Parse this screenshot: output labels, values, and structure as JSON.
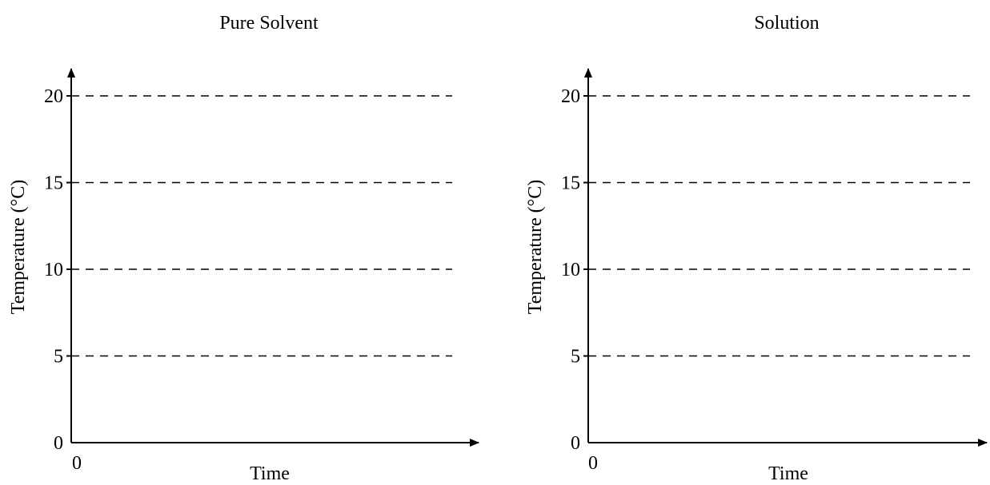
{
  "chart_data": [
    {
      "type": "line",
      "title": "Pure Solvent",
      "xlabel": "Time",
      "ylabel": "Temperature (°C)",
      "ylim": [
        0,
        21
      ],
      "yticks": [
        "0",
        "5",
        "10",
        "15",
        "20"
      ],
      "xticks": [
        "0"
      ],
      "grid": "horizontal dashed lines at 5, 10, 15, 20",
      "series": []
    },
    {
      "type": "line",
      "title": "Solution",
      "xlabel": "Time",
      "ylabel": "Temperature (°C)",
      "ylim": [
        0,
        21
      ],
      "yticks": [
        "0",
        "5",
        "10",
        "15",
        "20"
      ],
      "xticks": [
        "0"
      ],
      "grid": "horizontal dashed lines at 5, 10, 15, 20",
      "series": []
    }
  ]
}
